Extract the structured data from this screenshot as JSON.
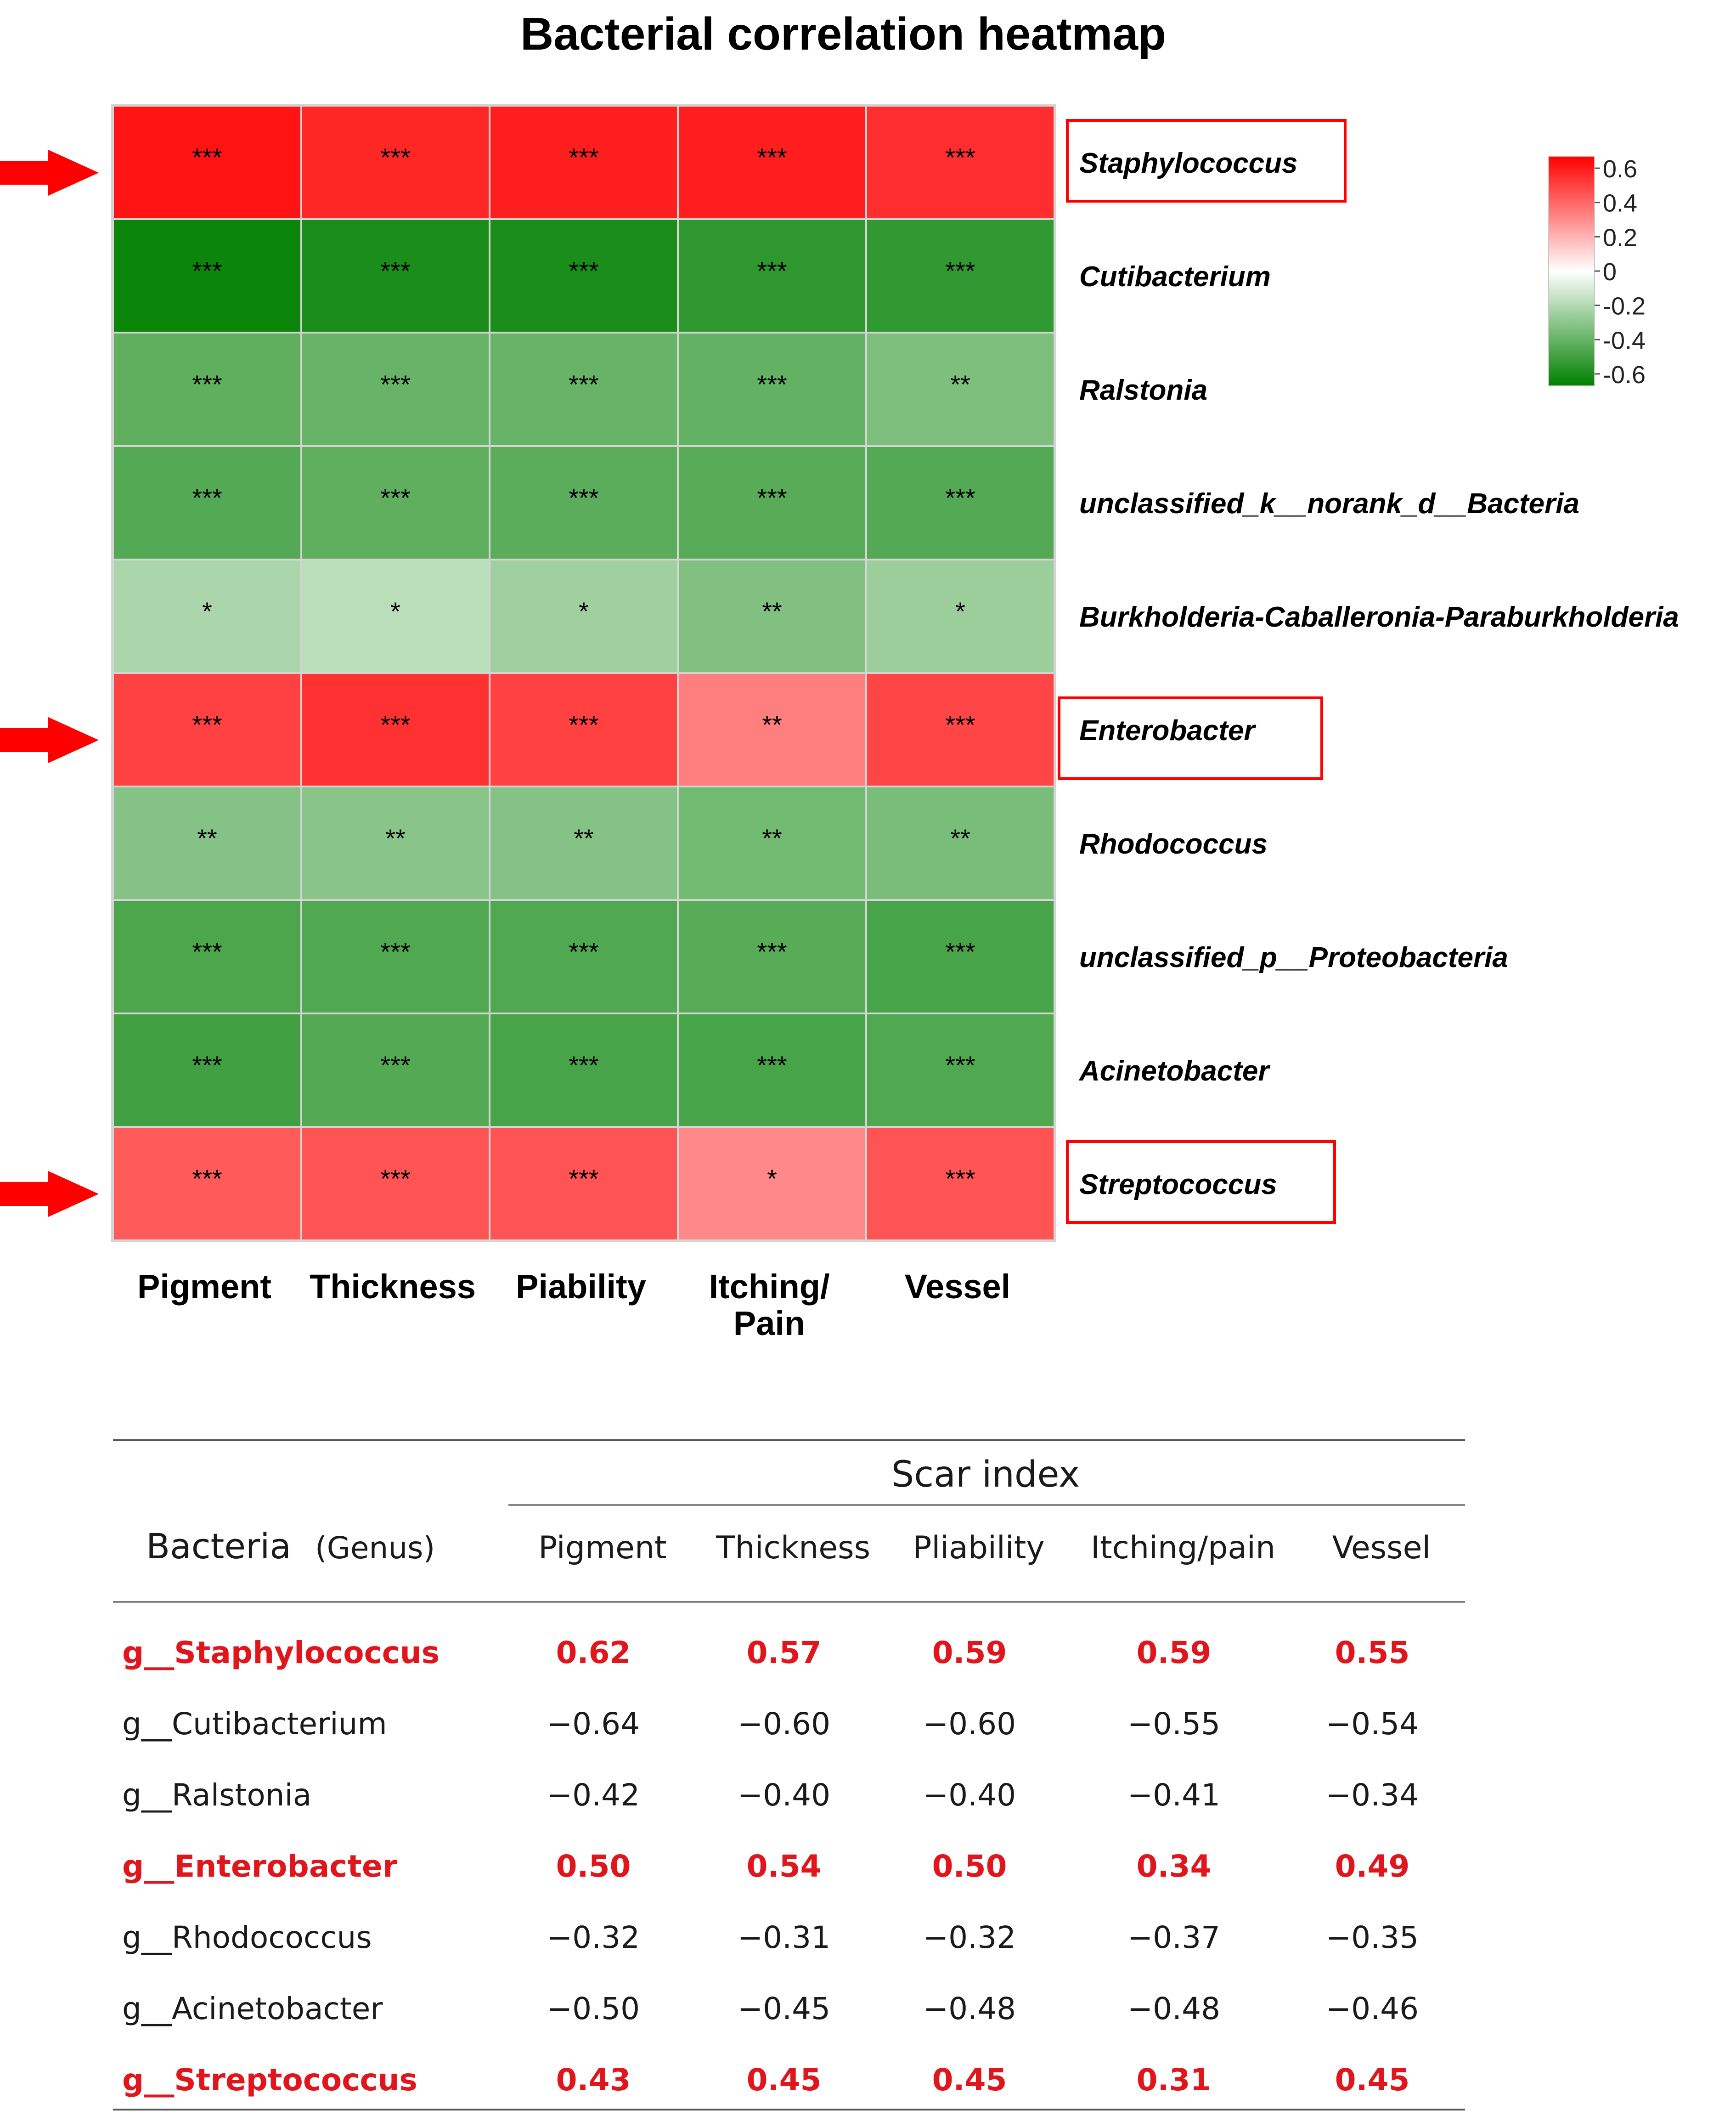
{
  "chart_data": [
    {
      "type": "heatmap",
      "title": "Bacterial correlation heatmap",
      "columns": [
        "Pigment",
        "Thickness",
        "Piability",
        "Itching/ Pain",
        "Vessel"
      ],
      "column_lines": [
        [
          "Pigment"
        ],
        [
          "Thickness"
        ],
        [
          "Piability"
        ],
        [
          "Itching/",
          "Pain"
        ],
        [
          "Vessel"
        ]
      ],
      "rows": [
        "Staphylococcus",
        "Cutibacterium",
        "Ralstonia",
        "unclassified_k__norank_d__Bacteria",
        "Burkholderia-Caballeronia-Paraburkholderia",
        "Enterobacter",
        "Rhodococcus",
        "unclassified_p__Proteobacteria",
        "Acinetobacter",
        "Streptococcus"
      ],
      "highlighted_rows": [
        "Staphylococcus",
        "Enterobacter",
        "Streptococcus"
      ],
      "values": [
        [
          0.62,
          0.57,
          0.59,
          0.59,
          0.55
        ],
        [
          -0.64,
          -0.6,
          -0.6,
          -0.55,
          -0.54
        ],
        [
          -0.42,
          -0.4,
          -0.4,
          -0.41,
          -0.34
        ],
        [
          -0.45,
          -0.42,
          -0.43,
          -0.44,
          -0.45
        ],
        [
          -0.22,
          -0.18,
          -0.25,
          -0.33,
          -0.26
        ],
        [
          0.5,
          0.54,
          0.5,
          0.34,
          0.49
        ],
        [
          -0.32,
          -0.31,
          -0.32,
          -0.37,
          -0.35
        ],
        [
          -0.47,
          -0.46,
          -0.46,
          -0.44,
          -0.48
        ],
        [
          -0.5,
          -0.45,
          -0.48,
          -0.48,
          -0.46
        ],
        [
          0.43,
          0.45,
          0.45,
          0.31,
          0.45
        ]
      ],
      "significance": [
        [
          "***",
          "***",
          "***",
          "***",
          "***"
        ],
        [
          "***",
          "***",
          "***",
          "***",
          "***"
        ],
        [
          "***",
          "***",
          "***",
          "***",
          "**"
        ],
        [
          "***",
          "***",
          "***",
          "***",
          "***"
        ],
        [
          "*",
          "*",
          "*",
          "**",
          "*"
        ],
        [
          "***",
          "***",
          "***",
          "**",
          "***"
        ],
        [
          "**",
          "**",
          "**",
          "**",
          "**"
        ],
        [
          "***",
          "***",
          "***",
          "***",
          "***"
        ],
        [
          "***",
          "***",
          "***",
          "***",
          "***"
        ],
        [
          "***",
          "***",
          "***",
          "*",
          "***"
        ]
      ],
      "color_scale": {
        "range": [
          -0.67,
          0.67
        ],
        "colors": {
          "low": "#008000",
          "mid": "#ffffff",
          "high": "#ff0000"
        },
        "ticks": [
          0.6,
          0.4,
          0.2,
          0,
          -0.2,
          -0.4,
          -0.6
        ],
        "tick_labels": [
          "0.6",
          "0.4",
          "0.2",
          "0",
          "-0.2",
          "-0.4",
          "-0.6"
        ],
        "position": "top-right"
      },
      "grid": true,
      "annotation_color": "#ff0000"
    },
    {
      "type": "table",
      "header_group": "Scar index",
      "row_header": {
        "main": "Bacteria",
        "sub": "(Genus)"
      },
      "columns": [
        "Pigment",
        "Thickness",
        "Pliability",
        "Itching/pain",
        "Vessel"
      ],
      "rows": [
        {
          "name": "g__Staphylococcus",
          "values": [
            "0.62",
            "0.57",
            "0.59",
            "0.59",
            "0.55"
          ],
          "highlight": true
        },
        {
          "name": "g__Cutibacterium",
          "values": [
            "−0.64",
            "−0.60",
            "−0.60",
            "−0.55",
            "−0.54"
          ],
          "highlight": false
        },
        {
          "name": "g__Ralstonia",
          "values": [
            "−0.42",
            "−0.40",
            "−0.40",
            "−0.41",
            "−0.34"
          ],
          "highlight": false
        },
        {
          "name": "g__Enterobacter",
          "values": [
            "0.50",
            "0.54",
            "0.50",
            "0.34",
            "0.49"
          ],
          "highlight": true
        },
        {
          "name": "g__Rhodococcus",
          "values": [
            "−0.32",
            "−0.31",
            "−0.32",
            "−0.37",
            "−0.35"
          ],
          "highlight": false
        },
        {
          "name": "g__Acinetobacter",
          "values": [
            "−0.50",
            "−0.45",
            "−0.48",
            "−0.48",
            "−0.46"
          ],
          "highlight": false
        },
        {
          "name": "g__Streptococcus",
          "values": [
            "0.43",
            "0.45",
            "0.45",
            "0.31",
            "0.45"
          ],
          "highlight": true
        }
      ],
      "highlight_color": "#e0161c",
      "text_color": "#1a1a1a"
    }
  ]
}
